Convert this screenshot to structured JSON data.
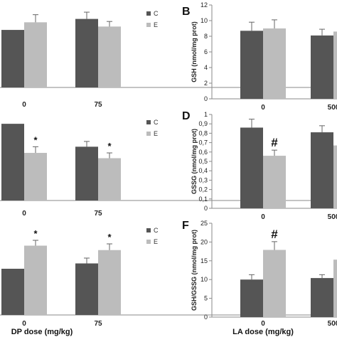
{
  "colors": {
    "C": "#555555",
    "E": "#bcbcbc",
    "err": "#666666",
    "axis": "#8a8a8a"
  },
  "chart_data": [
    {
      "id": "A",
      "type": "bar",
      "panel_label": "",
      "ylabel": "",
      "yticks": [],
      "categories": [
        "0",
        "75"
      ],
      "ylim": [
        0,
        10
      ],
      "xlabel": "",
      "legend": [
        "C",
        "E"
      ],
      "legend_position": "top-right",
      "series": [
        {
          "name": "C",
          "values": [
            6.8,
            8.1
          ],
          "errors": [
            0,
            0.8
          ]
        },
        {
          "name": "E",
          "values": [
            7.7,
            7.2
          ],
          "errors": [
            0.9,
            0.6
          ]
        }
      ],
      "annotations": []
    },
    {
      "id": "B",
      "type": "bar",
      "panel_label": "B",
      "ylabel": "GSH (nmol/mg prot)",
      "ylim": [
        0,
        12
      ],
      "yticks": [
        "0",
        "2",
        "4",
        "6",
        "8",
        "10",
        "12"
      ],
      "categories": [
        "0",
        "500"
      ],
      "xlabel": "",
      "series": [
        {
          "name": "C",
          "values": [
            8.7,
            8.1
          ],
          "errors": [
            1.1,
            0.8
          ]
        },
        {
          "name": "E",
          "values": [
            9.0,
            8.6
          ],
          "errors": [
            1.1,
            0
          ]
        }
      ],
      "annotations": []
    },
    {
      "id": "C",
      "type": "bar",
      "panel_label": "",
      "ylabel": "",
      "yticks": [],
      "categories": [
        "0",
        "75"
      ],
      "ylim": [
        0,
        10
      ],
      "xlabel": "",
      "legend": [
        "C",
        "E"
      ],
      "legend_position": "top-right",
      "series": [
        {
          "name": "C",
          "values": [
            8.7,
            6.1
          ],
          "errors": [
            0,
            0.6
          ]
        },
        {
          "name": "E",
          "values": [
            5.4,
            4.8
          ],
          "errors": [
            0.7,
            0.6
          ]
        }
      ],
      "annotations": [
        {
          "series": "E",
          "category": "0",
          "text": "*"
        },
        {
          "series": "E",
          "category": "75",
          "text": "*"
        }
      ]
    },
    {
      "id": "D",
      "type": "bar",
      "panel_label": "D",
      "ylabel": "GSSG (nmol/mg prot)",
      "ylim": [
        0,
        1
      ],
      "yticks": [
        "0",
        "0,1",
        "0,2",
        "0,3",
        "0,4",
        "0,5",
        "0,6",
        "0,7",
        "0,8",
        "0,9",
        "1"
      ],
      "categories": [
        "0",
        "500"
      ],
      "xlabel": "",
      "series": [
        {
          "name": "C",
          "values": [
            0.86,
            0.81
          ],
          "errors": [
            0.09,
            0.07
          ]
        },
        {
          "name": "E",
          "values": [
            0.56,
            0.67
          ],
          "errors": [
            0.06,
            0
          ]
        }
      ],
      "annotations": [
        {
          "series": "E",
          "category": "0",
          "text": "#"
        }
      ]
    },
    {
      "id": "E",
      "type": "bar",
      "panel_label": "",
      "ylabel": "",
      "yticks": [],
      "categories": [
        "0",
        "75"
      ],
      "ylim": [
        0,
        10
      ],
      "xlabel": "DP dose (mg/kg)",
      "legend": [
        "C",
        "E"
      ],
      "legend_position": "top-right",
      "series": [
        {
          "name": "C",
          "values": [
            5.2,
            5.8
          ],
          "errors": [
            0,
            0.6
          ]
        },
        {
          "name": "E",
          "values": [
            7.8,
            7.3
          ],
          "errors": [
            0.6,
            0.7
          ]
        }
      ],
      "annotations": [
        {
          "series": "E",
          "category": "0",
          "text": "*"
        },
        {
          "series": "E",
          "category": "75",
          "text": "*"
        }
      ]
    },
    {
      "id": "F",
      "type": "bar",
      "panel_label": "F",
      "ylabel": "GSH/GSSG (nmol/mg prot)",
      "ylim": [
        0,
        25
      ],
      "yticks": [
        "0",
        "5",
        "10",
        "15",
        "20",
        "25"
      ],
      "categories": [
        "0",
        "500"
      ],
      "xlabel": "LA dose (mg/kg)",
      "series": [
        {
          "name": "C",
          "values": [
            10.0,
            10.4
          ],
          "errors": [
            1.3,
            0.9
          ]
        },
        {
          "name": "E",
          "values": [
            17.9,
            15.3
          ],
          "errors": [
            2.2,
            0
          ]
        }
      ],
      "annotations": [
        {
          "series": "E",
          "category": "0",
          "text": "#"
        }
      ]
    }
  ]
}
